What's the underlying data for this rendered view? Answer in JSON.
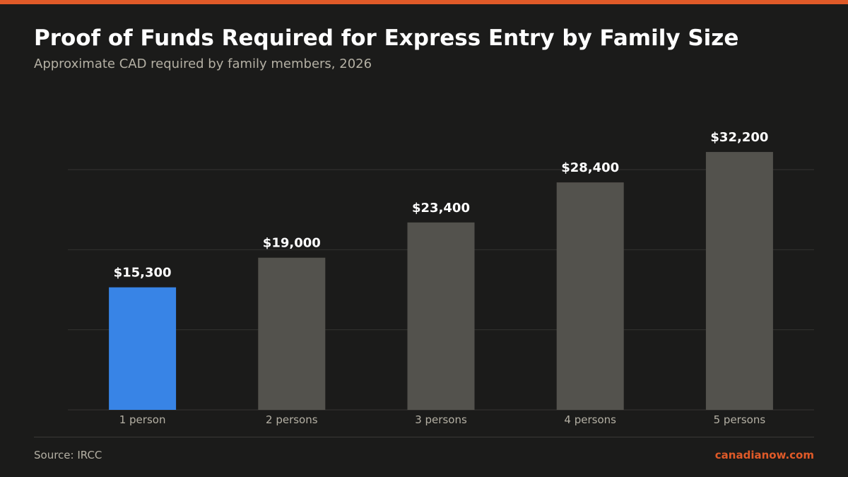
{
  "header": {
    "title": "Proof of Funds Required for Express Entry by Family Size",
    "subtitle": "Approximate CAD required by family members, 2026"
  },
  "footer": {
    "source": "Source: IRCC",
    "brand": "canadianow.com"
  },
  "colors": {
    "accent": "#e05a28",
    "highlight_bar": "#3884e6",
    "bar": "#53524d",
    "background": "#1b1b1a",
    "grid": "#343331",
    "value_label": "#ffffff",
    "tick_label": "#b4b0a4"
  },
  "chart_data": {
    "type": "bar",
    "categories": [
      "1 person",
      "2 persons",
      "3 persons",
      "4 persons",
      "5 persons"
    ],
    "values": [
      15300,
      19000,
      23400,
      28400,
      32200
    ],
    "value_labels": [
      "$15,300",
      "$19,000",
      "$23,400",
      "$28,400",
      "$32,200"
    ],
    "highlight_index": 0,
    "ylim": [
      0,
      30000
    ],
    "grid": true,
    "legend": "none"
  }
}
